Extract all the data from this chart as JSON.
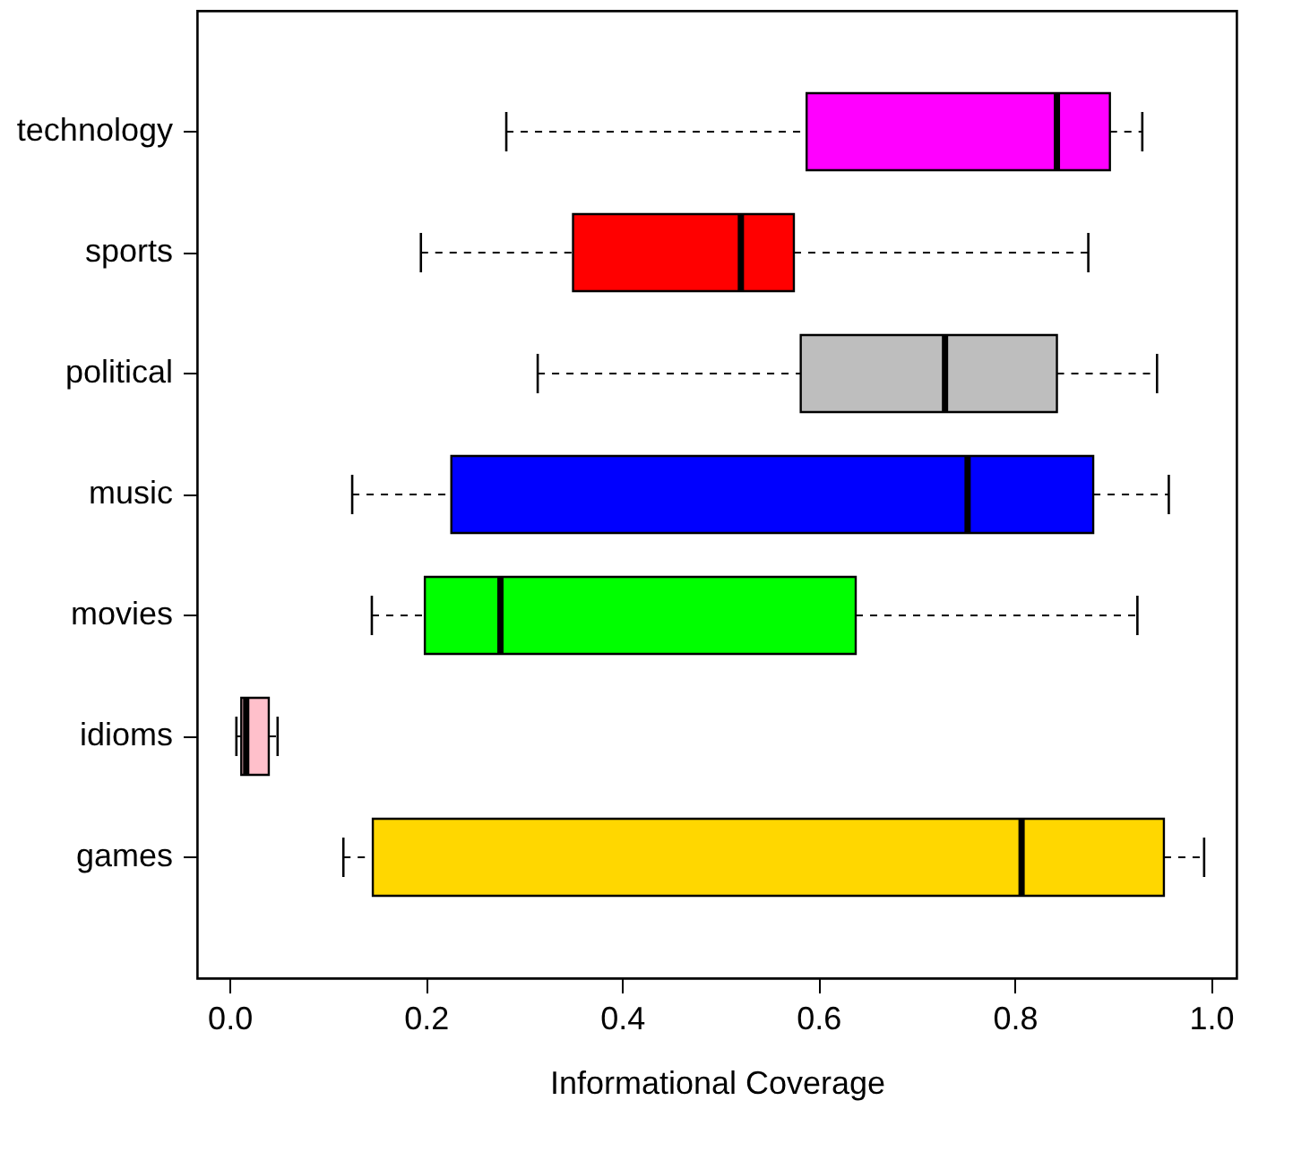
{
  "chart_data": {
    "type": "box",
    "orientation": "horizontal",
    "xlabel": "Informational Coverage",
    "grid": false,
    "categories": [
      "technology",
      "sports",
      "political",
      "music",
      "movies",
      "idioms",
      "games"
    ],
    "colors": [
      "#ff00ff",
      "#ff0000",
      "#bebebe",
      "#0000ff",
      "#00ff00",
      "#ffc0cb",
      "#ffd700"
    ],
    "boxes": [
      {
        "low": 0.282,
        "q1": 0.588,
        "median": 0.843,
        "q3": 0.897,
        "high": 0.93
      },
      {
        "low": 0.195,
        "q1": 0.35,
        "median": 0.521,
        "q3": 0.575,
        "high": 0.875
      },
      {
        "low": 0.314,
        "q1": 0.582,
        "median": 0.729,
        "q3": 0.843,
        "high": 0.945
      },
      {
        "low": 0.125,
        "q1": 0.226,
        "median": 0.752,
        "q3": 0.88,
        "high": 0.957
      },
      {
        "low": 0.145,
        "q1": 0.199,
        "median": 0.276,
        "q3": 0.638,
        "high": 0.925
      },
      {
        "low": 0.007,
        "q1": 0.012,
        "median": 0.017,
        "q3": 0.04,
        "high": 0.049
      },
      {
        "low": 0.116,
        "q1": 0.146,
        "median": 0.807,
        "q3": 0.952,
        "high": 0.993
      }
    ],
    "xlim": [
      -0.033,
      1.026
    ],
    "xticks": [
      {
        "value": 0,
        "label": "0.0"
      },
      0.2,
      0.4,
      0.6,
      0.8,
      {
        "value": 1,
        "label": "1.0"
      }
    ]
  }
}
